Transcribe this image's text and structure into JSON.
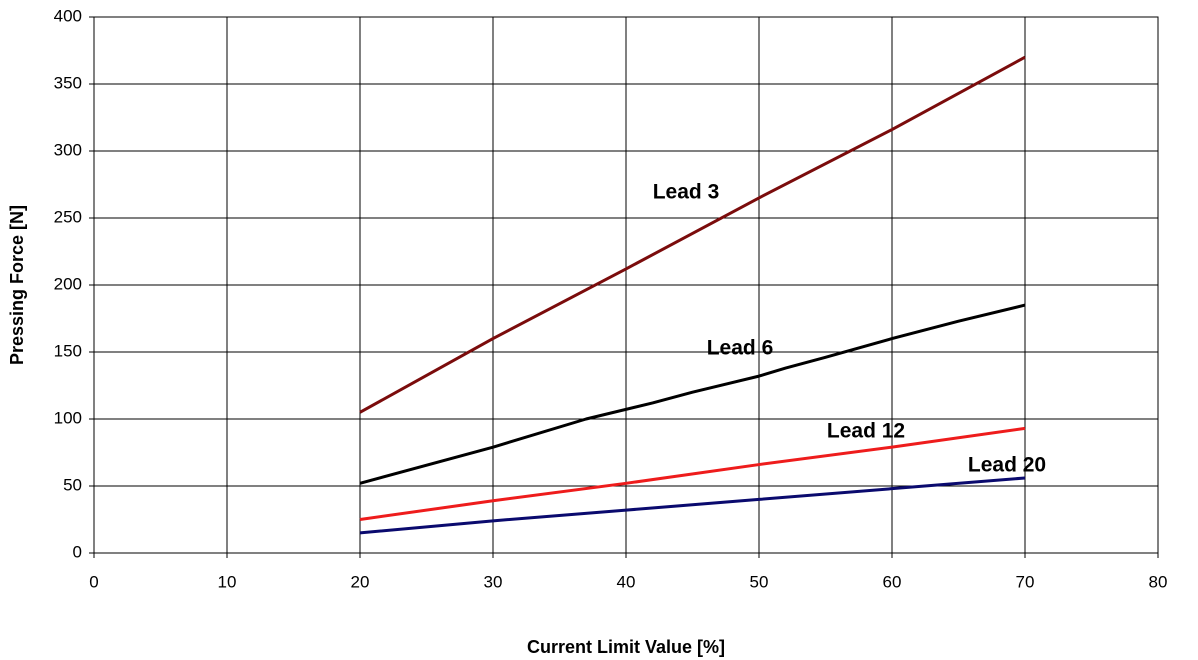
{
  "chart_data": {
    "type": "line",
    "x_label": "Current Limit Value [%]",
    "y_label": "Pressing Force [N]",
    "xlim": [
      0,
      80
    ],
    "xticks": [
      0,
      10,
      20,
      30,
      40,
      50,
      60,
      70,
      80
    ],
    "ylim": [
      0,
      400
    ],
    "yticks": [
      0,
      50,
      100,
      150,
      200,
      250,
      300,
      350,
      400
    ],
    "grid": true,
    "series": [
      {
        "name": "Lead 3",
        "color": "#7b0c0c",
        "x": [
          20,
          30,
          40,
          50,
          60,
          70
        ],
        "values": [
          105,
          160,
          212,
          265,
          316,
          370
        ]
      },
      {
        "name": "Lead 6",
        "color": "#000000",
        "x": [
          20,
          30,
          37,
          42,
          45,
          50,
          52,
          55,
          60,
          65,
          70
        ],
        "values": [
          52,
          79,
          100,
          112,
          120,
          132,
          138,
          146,
          160,
          173,
          185
        ]
      },
      {
        "name": "Lead 12",
        "color": "#ee1c1c",
        "x": [
          20,
          30,
          40,
          50,
          60,
          70
        ],
        "values": [
          25,
          39,
          52,
          66,
          79,
          93
        ]
      },
      {
        "name": "Lead 20",
        "color": "#0a0a6e",
        "x": [
          20,
          30,
          40,
          50,
          60,
          70
        ],
        "values": [
          15,
          24,
          32,
          40,
          48,
          56
        ]
      }
    ]
  }
}
